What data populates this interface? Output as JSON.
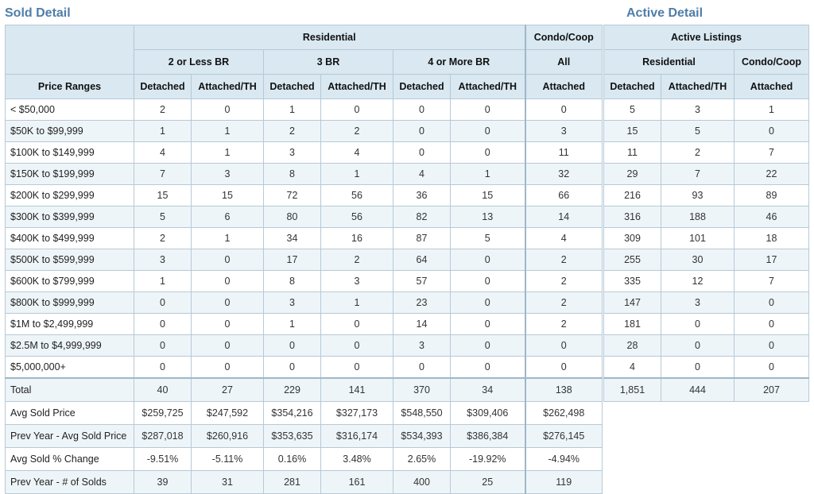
{
  "sold_title": "Sold Detail",
  "active_title": "Active Detail",
  "sold": {
    "header": {
      "residential": "Residential",
      "condo_coop": "Condo/Coop",
      "groups": [
        "2 or Less BR",
        "3 BR",
        "4 or More BR",
        "All"
      ],
      "price_ranges": "Price Ranges",
      "columns": [
        "Detached",
        "Attached/TH",
        "Detached",
        "Attached/TH",
        "Detached",
        "Attached/TH",
        "Attached"
      ]
    },
    "rows": [
      {
        "label": "< $50,000",
        "values": [
          "2",
          "0",
          "1",
          "0",
          "0",
          "0",
          "0"
        ]
      },
      {
        "label": "$50K to $99,999",
        "values": [
          "1",
          "1",
          "2",
          "2",
          "0",
          "0",
          "3"
        ]
      },
      {
        "label": "$100K to $149,999",
        "values": [
          "4",
          "1",
          "3",
          "4",
          "0",
          "0",
          "11"
        ]
      },
      {
        "label": "$150K to $199,999",
        "values": [
          "7",
          "3",
          "8",
          "1",
          "4",
          "1",
          "32"
        ]
      },
      {
        "label": "$200K to $299,999",
        "values": [
          "15",
          "15",
          "72",
          "56",
          "36",
          "15",
          "66"
        ]
      },
      {
        "label": "$300K to $399,999",
        "values": [
          "5",
          "6",
          "80",
          "56",
          "82",
          "13",
          "14"
        ]
      },
      {
        "label": "$400K to $499,999",
        "values": [
          "2",
          "1",
          "34",
          "16",
          "87",
          "5",
          "4"
        ]
      },
      {
        "label": "$500K to $599,999",
        "values": [
          "3",
          "0",
          "17",
          "2",
          "64",
          "0",
          "2"
        ]
      },
      {
        "label": "$600K to $799,999",
        "values": [
          "1",
          "0",
          "8",
          "3",
          "57",
          "0",
          "2"
        ]
      },
      {
        "label": "$800K to $999,999",
        "values": [
          "0",
          "0",
          "3",
          "1",
          "23",
          "0",
          "2"
        ]
      },
      {
        "label": "$1M to $2,499,999",
        "values": [
          "0",
          "0",
          "1",
          "0",
          "14",
          "0",
          "2"
        ]
      },
      {
        "label": "$2.5M to $4,999,999",
        "values": [
          "0",
          "0",
          "0",
          "0",
          "3",
          "0",
          "0"
        ]
      },
      {
        "label": "$5,000,000+",
        "values": [
          "0",
          "0",
          "0",
          "0",
          "0",
          "0",
          "0"
        ]
      }
    ],
    "total": {
      "label": "Total",
      "values": [
        "40",
        "27",
        "229",
        "141",
        "370",
        "34",
        "138"
      ]
    },
    "summary": [
      {
        "label": "Avg Sold Price",
        "values": [
          "$259,725",
          "$247,592",
          "$354,216",
          "$327,173",
          "$548,550",
          "$309,406",
          "$262,498"
        ]
      },
      {
        "label": "Prev Year - Avg Sold Price",
        "values": [
          "$287,018",
          "$260,916",
          "$353,635",
          "$316,174",
          "$534,393",
          "$386,384",
          "$276,145"
        ]
      },
      {
        "label": "Avg Sold % Change",
        "values": [
          "-9.51%",
          "-5.11%",
          "0.16%",
          "3.48%",
          "2.65%",
          "-19.92%",
          "-4.94%"
        ]
      },
      {
        "label": "Prev Year - # of Solds",
        "values": [
          "39",
          "31",
          "281",
          "161",
          "400",
          "25",
          "119"
        ]
      }
    ]
  },
  "active": {
    "header": {
      "title": "Active Listings",
      "residential": "Residential",
      "condo_coop": "Condo/Coop",
      "columns": [
        "Detached",
        "Attached/TH",
        "Attached"
      ]
    },
    "rows": [
      {
        "values": [
          "5",
          "3",
          "1"
        ]
      },
      {
        "values": [
          "15",
          "5",
          "0"
        ]
      },
      {
        "values": [
          "11",
          "2",
          "7"
        ]
      },
      {
        "values": [
          "29",
          "7",
          "22"
        ]
      },
      {
        "values": [
          "216",
          "93",
          "89"
        ]
      },
      {
        "values": [
          "316",
          "188",
          "46"
        ]
      },
      {
        "values": [
          "309",
          "101",
          "18"
        ]
      },
      {
        "values": [
          "255",
          "30",
          "17"
        ]
      },
      {
        "values": [
          "335",
          "12",
          "7"
        ]
      },
      {
        "values": [
          "147",
          "3",
          "0"
        ]
      },
      {
        "values": [
          "181",
          "0",
          "0"
        ]
      },
      {
        "values": [
          "28",
          "0",
          "0"
        ]
      },
      {
        "values": [
          "4",
          "0",
          "0"
        ]
      }
    ],
    "total": {
      "values": [
        "1,851",
        "444",
        "207"
      ]
    }
  }
}
